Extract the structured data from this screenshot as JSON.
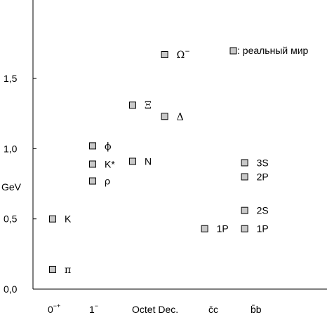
{
  "chart_data": {
    "type": "scatter",
    "ylabel": "GeV",
    "ylim": [
      0.0,
      2.0
    ],
    "y_ticks": [
      "0,0",
      "0,5",
      "1,0",
      "1,5"
    ],
    "y_tick_values": [
      0.0,
      0.5,
      1.0,
      1.5
    ],
    "categories": [
      {
        "label": "0",
        "sup": "−+"
      },
      {
        "label": "1",
        "sup": "−"
      },
      {
        "label": "Octet Dec.",
        "sup": ""
      },
      {
        "label": "c̄c",
        "sup": ""
      },
      {
        "label": "b̄b",
        "sup": ""
      }
    ],
    "legend": {
      "text": ": реальный мир",
      "position": "top-right"
    },
    "marker_color": "#c8c8c8",
    "points": [
      {
        "x": 0.0,
        "y": 0.14,
        "label": "π"
      },
      {
        "x": 0.0,
        "y": 0.5,
        "label": "K"
      },
      {
        "x": 1.0,
        "y": 0.77,
        "label": "ρ"
      },
      {
        "x": 1.0,
        "y": 0.89,
        "label": "K*"
      },
      {
        "x": 1.0,
        "y": 1.02,
        "label": "ϕ"
      },
      {
        "x": 2.0,
        "y": 0.91,
        "label": "N"
      },
      {
        "x": 2.0,
        "y": 1.31,
        "label": "Ξ"
      },
      {
        "x": 2.8,
        "y": 1.23,
        "label": "Δ"
      },
      {
        "x": 2.8,
        "y": 1.67,
        "label": "Ω",
        "sup": "−"
      },
      {
        "x": 3.8,
        "y": 0.43,
        "label": "1P"
      },
      {
        "x": 4.8,
        "y": 0.43,
        "label": "1P"
      },
      {
        "x": 4.8,
        "y": 0.56,
        "label": "2S"
      },
      {
        "x": 4.8,
        "y": 0.8,
        "label": "2P"
      },
      {
        "x": 4.8,
        "y": 0.9,
        "label": "3S"
      }
    ]
  }
}
